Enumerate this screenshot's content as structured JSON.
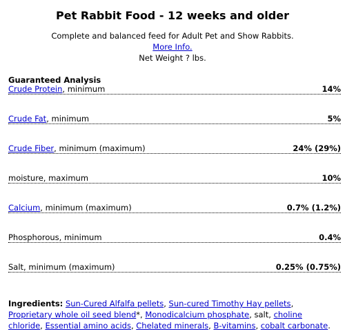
{
  "header": {
    "title": "Pet Rabbit Food - 12 weeks and older",
    "subtitle": "Complete and balanced feed for Adult Pet and Show Rabbits.",
    "link": "More Info.",
    "net_weight": "Net Weight ? lbs."
  },
  "analysis": {
    "heading": "Guaranteed Analysis",
    "rows": [
      {
        "link": "Crude Protein",
        "label": ", minimum",
        "value": "14%"
      },
      {
        "link": "Crude Fat",
        "label": ", minimum",
        "value": "5%"
      },
      {
        "link": "Crude Fiber",
        "label": ", minimum (maximum)",
        "value": "24% (29%)"
      },
      {
        "label": "moisture, maximum",
        "value": "10%"
      },
      {
        "link": "Calcium",
        "label": ", minimum (maximum)",
        "value": "0.7% (1.2%)"
      },
      {
        "label": "Phosphorous, minimum",
        "value": "0.4%"
      },
      {
        "label": "Salt, minimum (maximum)",
        "value": "0.25% (0.75%)"
      }
    ]
  },
  "ingredients": {
    "heading": "Ingredients:",
    "parts": [
      {
        "link": "Sun-Cured Alfalfa pellets"
      },
      {
        "text": ", "
      },
      {
        "link": "Sun-cured Timothy Hay pellets"
      },
      {
        "text": ", "
      },
      {
        "link": "Proprietary whole oil seed blend"
      },
      {
        "text": "*, "
      },
      {
        "link": "Monodicalcium phosphate"
      },
      {
        "text": ", salt, "
      },
      {
        "link": "choline chloride"
      },
      {
        "text": ", "
      },
      {
        "link": "Essential amino acids"
      },
      {
        "text": ", "
      },
      {
        "link": "Chelated minerals"
      },
      {
        "text": ", "
      },
      {
        "link": "B-vitamins"
      },
      {
        "text": ", "
      },
      {
        "link": "cobalt carbonate"
      },
      {
        "text": "."
      }
    ]
  }
}
